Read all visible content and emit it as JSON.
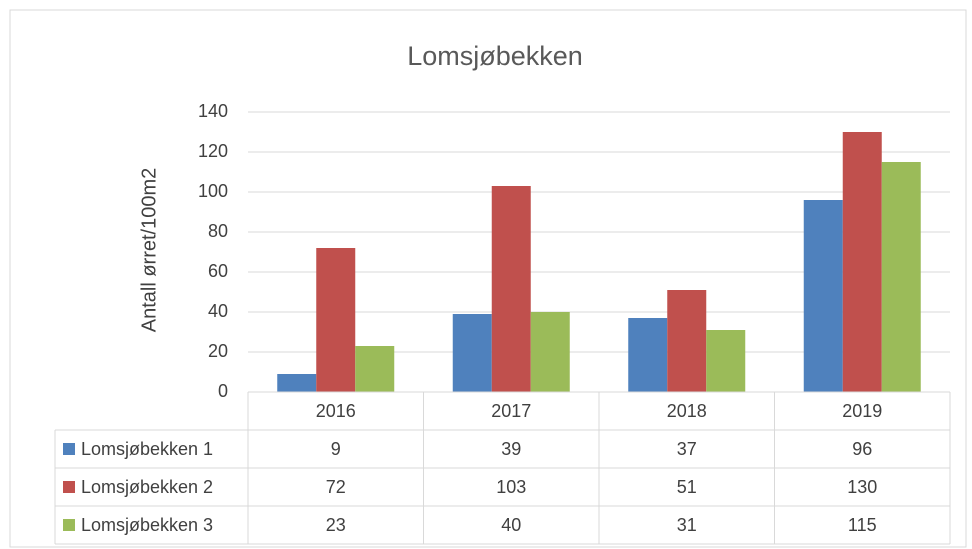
{
  "chart_data": {
    "type": "bar",
    "title": "Lomsjøbekken",
    "y_label": "Antall ørret/100m2",
    "categories": [
      "2016",
      "2017",
      "2018",
      "2019"
    ],
    "series": [
      {
        "name": "Lomsjøbekken 1",
        "color": "#4f81bd",
        "values": [
          9,
          39,
          37,
          96
        ]
      },
      {
        "name": "Lomsjøbekken 2",
        "color": "#c0504d",
        "values": [
          72,
          103,
          51,
          130
        ]
      },
      {
        "name": "Lomsjøbekken 3",
        "color": "#9bbb59",
        "values": [
          23,
          40,
          31,
          115
        ]
      }
    ],
    "ylim": [
      0,
      140
    ],
    "yticks": [
      0,
      20,
      40,
      60,
      80,
      100,
      120,
      140
    ],
    "grid": true
  }
}
